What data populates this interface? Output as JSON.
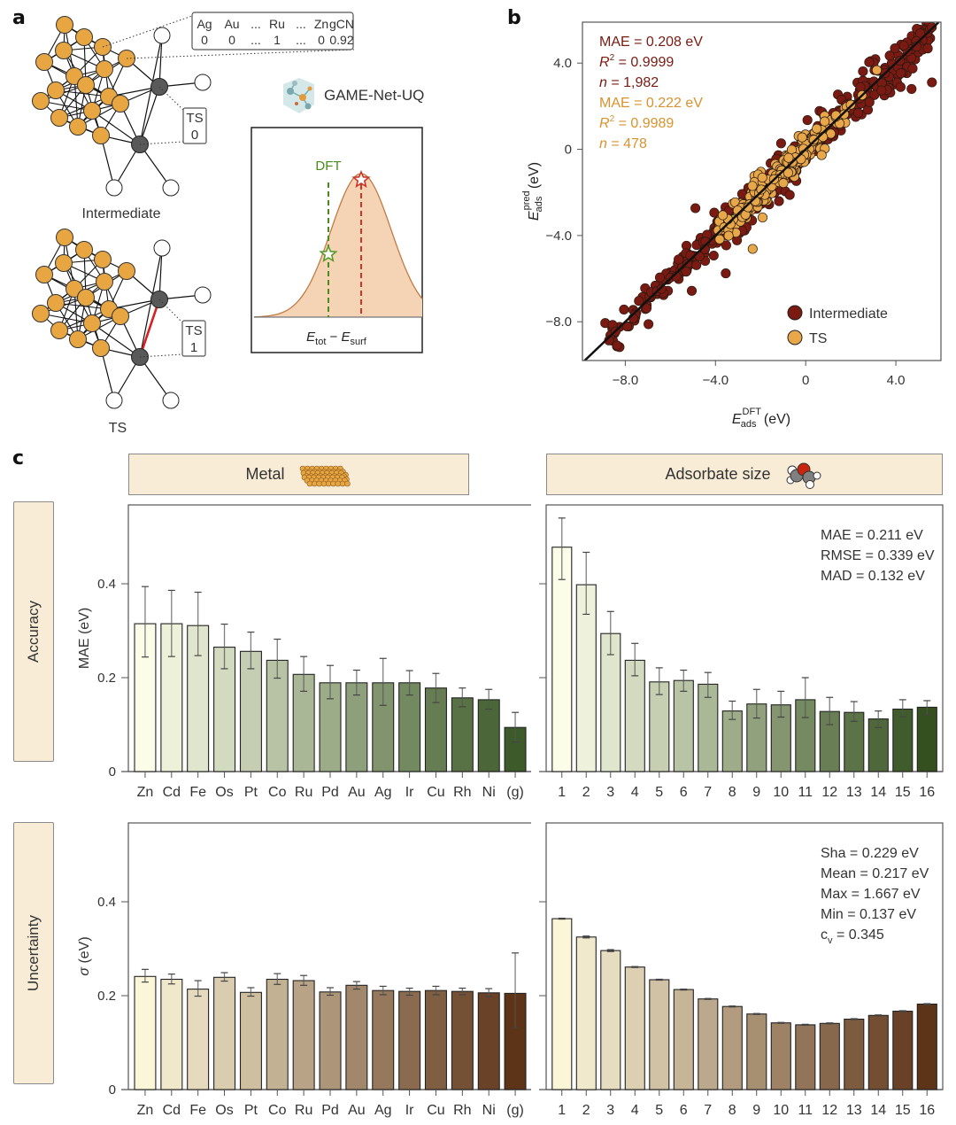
{
  "panels": {
    "a": {
      "letter": "a",
      "feature_table": {
        "headers": [
          "Ag",
          "Au",
          "...",
          "Ru",
          "...",
          "Zn",
          "gCN"
        ],
        "values": [
          "0",
          "0",
          "...",
          "1",
          "...",
          "0",
          "0.92"
        ]
      },
      "intermediate_label": "Intermediate",
      "ts_graph_label": "TS",
      "ts_box_intermediate": {
        "title": "TS",
        "value": "0"
      },
      "ts_box_ts": {
        "title": "TS",
        "value": "1"
      },
      "model_name": "GAME-Net-UQ",
      "distribution": {
        "dft_label": "DFT",
        "xlabel_main": "E",
        "xlabel_sub1": "tot",
        "xlabel_minus": " − ",
        "xlabel_sub2": "surf",
        "colors": {
          "dft": "#4a8a1c",
          "pred": "#c8362a",
          "fill": "#f5d3b5",
          "curve": "#c27a45"
        }
      }
    },
    "b": {
      "letter": "b"
    },
    "c": {
      "letter": "c",
      "col_headers": [
        "Metal",
        "Adsorbate size"
      ],
      "row_headers": [
        "Accuracy",
        "Uncertainty"
      ]
    }
  },
  "chart_data": [
    {
      "id": "scatter",
      "type": "scatter",
      "title": "",
      "xlabel": "E_ads^DFT (eV)",
      "xlabel_parts": {
        "main": "E",
        "sub": "ads",
        "sup": "DFT",
        "unit": " (eV)"
      },
      "ylabel": "E_ads^pred (eV)",
      "ylabel_parts": {
        "main": "E",
        "sub": "ads",
        "sup": "pred",
        "unit": " (eV)"
      },
      "xlim": [
        -9.9,
        6.0
      ],
      "ylim": [
        -9.8,
        5.9
      ],
      "xticks": [
        {
          "v": -8,
          "label": "−8.0"
        },
        {
          "v": -4,
          "label": "−4.0"
        },
        {
          "v": 0,
          "label": "0"
        },
        {
          "v": 4,
          "label": "4.0"
        }
      ],
      "yticks": [
        {
          "v": 4,
          "label": "4.0"
        },
        {
          "v": 0,
          "label": "0"
        },
        {
          "v": -4,
          "label": "−4.0"
        },
        {
          "v": -8,
          "label": "−8.0"
        }
      ],
      "parity_line": true,
      "legend_position": "bottom-right",
      "series": [
        {
          "name": "Intermediate",
          "color": "#7a1a12",
          "n_label": "n = 1,982",
          "stats": [
            "MAE = 0.208 eV",
            "R² = 0.9999",
            "n = 1,982"
          ],
          "x_range": [
            -8.9,
            5.6
          ],
          "spread": 0.35,
          "n_drawn": 420
        },
        {
          "name": "TS",
          "color": "#e8a84a",
          "stats": [
            "MAE = 0.222 eV",
            "R² = 0.9989",
            "n = 478"
          ],
          "x_range": [
            -4.0,
            5.9
          ],
          "spread": 0.25,
          "n_drawn": 260
        }
      ],
      "stats_text": {
        "intermediate": {
          "mae": "MAE = 0.208 eV",
          "r2_label": "R",
          "r2_sup": "2",
          "r2_val": " = 0.9999",
          "n_label": "n",
          "n_val": " = 1,982"
        },
        "ts": {
          "mae": "MAE = 0.222 eV",
          "r2_label": "R",
          "r2_sup": "2",
          "r2_val": " = 0.9989",
          "n_label": "n",
          "n_val": " = 478"
        }
      }
    },
    {
      "id": "metal-accuracy",
      "type": "bar",
      "ylabel": "MAE (eV)",
      "ylim": [
        0,
        0.57
      ],
      "yticks": [
        {
          "v": 0,
          "label": "0"
        },
        {
          "v": 0.2,
          "label": "0.2"
        },
        {
          "v": 0.4,
          "label": "0.4"
        }
      ],
      "categories": [
        "Zn",
        "Cd",
        "Fe",
        "Os",
        "Pt",
        "Co",
        "Ru",
        "Pd",
        "Au",
        "Ag",
        "Ir",
        "Cu",
        "Rh",
        "Ni",
        "(g)"
      ],
      "values": [
        0.315,
        0.315,
        0.311,
        0.265,
        0.256,
        0.237,
        0.207,
        0.189,
        0.189,
        0.189,
        0.189,
        0.178,
        0.157,
        0.153,
        0.094
      ],
      "err_low": [
        0.244,
        0.245,
        0.247,
        0.219,
        0.219,
        0.199,
        0.171,
        0.155,
        0.163,
        0.141,
        0.163,
        0.147,
        0.138,
        0.133,
        0.063
      ],
      "err_high": [
        0.394,
        0.386,
        0.382,
        0.314,
        0.297,
        0.282,
        0.245,
        0.226,
        0.216,
        0.241,
        0.215,
        0.209,
        0.178,
        0.175,
        0.126
      ],
      "color_ramp": [
        "#fbfde8",
        "#3d5a2a"
      ],
      "annotation": []
    },
    {
      "id": "adsorbate-accuracy",
      "type": "bar",
      "ylabel": "",
      "ylim": [
        0,
        0.57
      ],
      "yticks": [
        {
          "v": 0,
          "label": ""
        },
        {
          "v": 0.2,
          "label": ""
        },
        {
          "v": 0.4,
          "label": ""
        }
      ],
      "categories": [
        "1",
        "2",
        "3",
        "4",
        "5",
        "6",
        "7",
        "8",
        "9",
        "10",
        "11",
        "12",
        "13",
        "14",
        "15",
        "16"
      ],
      "values": [
        0.478,
        0.398,
        0.294,
        0.237,
        0.191,
        0.194,
        0.186,
        0.129,
        0.144,
        0.142,
        0.153,
        0.128,
        0.126,
        0.112,
        0.133,
        0.137
      ],
      "err_low": [
        0.409,
        0.335,
        0.249,
        0.204,
        0.164,
        0.171,
        0.158,
        0.111,
        0.114,
        0.116,
        0.115,
        0.1,
        0.107,
        0.094,
        0.117,
        0.121
      ],
      "err_high": [
        0.54,
        0.467,
        0.341,
        0.273,
        0.221,
        0.216,
        0.211,
        0.15,
        0.175,
        0.171,
        0.2,
        0.158,
        0.149,
        0.129,
        0.153,
        0.151
      ],
      "color_ramp": [
        "#fbfde8",
        "#34501f"
      ],
      "annotation": [
        "MAE = 0.211 eV",
        "RMSE = 0.339 eV",
        "MAD = 0.132 eV"
      ]
    },
    {
      "id": "metal-uncertainty",
      "type": "bar",
      "ylabel": "σ (eV)",
      "ylim": [
        0,
        0.57
      ],
      "yticks": [
        {
          "v": 0,
          "label": "0"
        },
        {
          "v": 0.2,
          "label": "0.2"
        },
        {
          "v": 0.4,
          "label": "0.4"
        }
      ],
      "categories": [
        "Zn",
        "Cd",
        "Fe",
        "Os",
        "Pt",
        "Co",
        "Ru",
        "Pd",
        "Au",
        "Ag",
        "Ir",
        "Cu",
        "Rh",
        "Ni",
        "(g)"
      ],
      "values": [
        0.241,
        0.235,
        0.214,
        0.239,
        0.207,
        0.235,
        0.232,
        0.208,
        0.222,
        0.211,
        0.209,
        0.211,
        0.209,
        0.206,
        0.205
      ],
      "err_low": [
        0.229,
        0.225,
        0.199,
        0.231,
        0.199,
        0.224,
        0.222,
        0.201,
        0.214,
        0.202,
        0.201,
        0.202,
        0.202,
        0.198,
        0.132
      ],
      "err_high": [
        0.256,
        0.246,
        0.232,
        0.249,
        0.217,
        0.247,
        0.243,
        0.217,
        0.23,
        0.22,
        0.216,
        0.22,
        0.216,
        0.215,
        0.291
      ],
      "color_ramp": [
        "#fbf6d8",
        "#5e3419"
      ],
      "annotation": []
    },
    {
      "id": "adsorbate-uncertainty",
      "type": "bar",
      "ylabel": "",
      "ylim": [
        0,
        0.57
      ],
      "yticks": [
        {
          "v": 0,
          "label": ""
        },
        {
          "v": 0.2,
          "label": ""
        },
        {
          "v": 0.4,
          "label": ""
        }
      ],
      "categories": [
        "1",
        "2",
        "3",
        "4",
        "5",
        "6",
        "7",
        "8",
        "9",
        "10",
        "11",
        "12",
        "13",
        "14",
        "15",
        "16"
      ],
      "values": [
        0.364,
        0.325,
        0.296,
        0.261,
        0.234,
        0.213,
        0.193,
        0.177,
        0.161,
        0.142,
        0.138,
        0.141,
        0.15,
        0.158,
        0.167,
        0.182
      ],
      "err_low": [
        0.363,
        0.323,
        0.294,
        0.26,
        0.233,
        0.212,
        0.192,
        0.176,
        0.16,
        0.141,
        0.137,
        0.14,
        0.149,
        0.157,
        0.166,
        0.181
      ],
      "err_high": [
        0.365,
        0.327,
        0.298,
        0.262,
        0.235,
        0.214,
        0.194,
        0.178,
        0.162,
        0.143,
        0.139,
        0.142,
        0.151,
        0.159,
        0.168,
        0.183
      ],
      "color_ramp": [
        "#fbf6d8",
        "#5e3419"
      ],
      "annotation": [
        "Sha = 0.229 eV",
        "Mean = 0.217 eV",
        "Max = 1.667 eV",
        "Min = 0.137 eV",
        "c_v = 0.345"
      ],
      "cv_parts": {
        "main": "c",
        "sub": "v",
        "rest": " = 0.345"
      }
    }
  ]
}
